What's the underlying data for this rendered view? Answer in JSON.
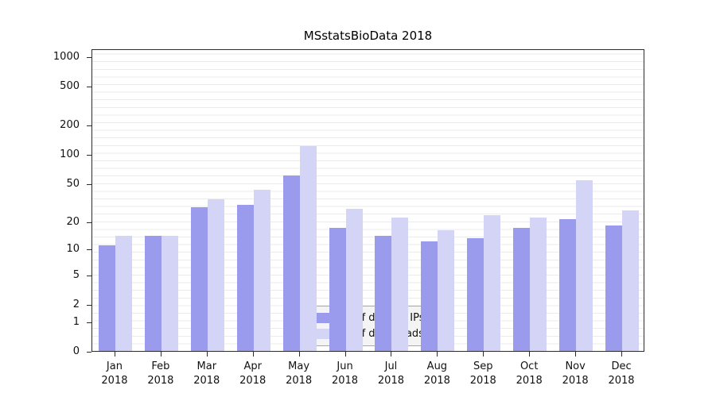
{
  "chart_data": {
    "type": "bar",
    "title": "MSstatsBioData 2018",
    "categories": [
      "Jan 2018",
      "Feb 2018",
      "Mar 2018",
      "Apr 2018",
      "May 2018",
      "Jun 2018",
      "Jul 2018",
      "Aug 2018",
      "Sep 2018",
      "Oct 2018",
      "Nov 2018",
      "Dec 2018"
    ],
    "series": [
      {
        "name": "Nb of distinct IPs",
        "key": "distinct-ips",
        "color": "#9b9bee",
        "values": [
          11,
          14,
          28,
          30,
          60,
          17,
          14,
          12,
          13,
          17,
          21,
          18
        ]
      },
      {
        "name": "Nb of downloads",
        "key": "downloads",
        "color": "#d4d4f7",
        "values": [
          14,
          14,
          34,
          43,
          120,
          27,
          22,
          16,
          23,
          22,
          54,
          26
        ]
      }
    ],
    "yscale": "log1p",
    "yticks": [
      0,
      1,
      2,
      5,
      10,
      20,
      50,
      100,
      200,
      500,
      1000
    ],
    "ylim": [
      0,
      1070
    ],
    "xlabel": "",
    "ylabel": "",
    "grid": "horizontal-light",
    "legend_position": "bottom-center-inside"
  }
}
